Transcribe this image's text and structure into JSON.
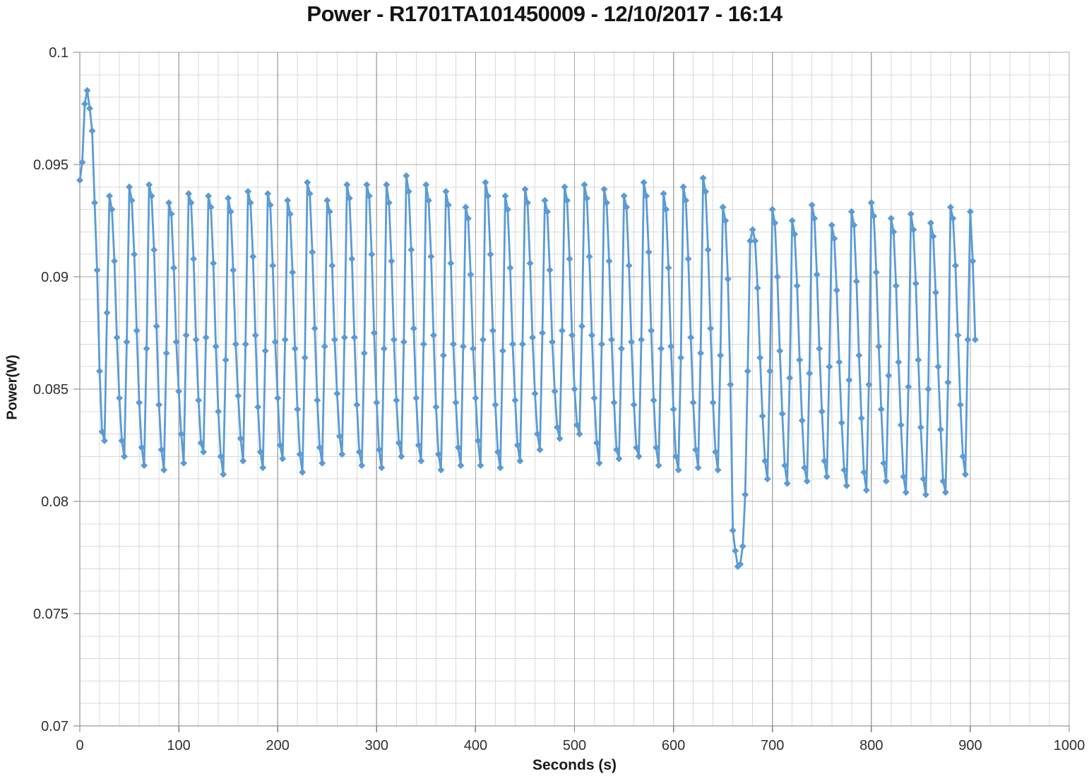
{
  "chart_data": {
    "type": "line",
    "title": "Power - R1701TA101450009 - 12/10/2017 - 16:14",
    "xlabel": "Seconds (s)",
    "ylabel": "Power(W)",
    "xlim": [
      0,
      1000
    ],
    "ylim": [
      0.07,
      0.1
    ],
    "grid": {
      "x_minor_step": 20,
      "x_major_step": 100,
      "y_minor_step": 0.001,
      "y_major_step": 0.005,
      "minor_color": "#D9D9D9",
      "major_color": "#A8A8A8",
      "axis_color": "#7F7F7F"
    },
    "legend_position": "none",
    "x_ticks": [
      {
        "value": 0,
        "label": "0"
      },
      {
        "value": 100,
        "label": "100"
      },
      {
        "value": 200,
        "label": "200"
      },
      {
        "value": 300,
        "label": "300"
      },
      {
        "value": 400,
        "label": "400"
      },
      {
        "value": 500,
        "label": "500"
      },
      {
        "value": 600,
        "label": "600"
      },
      {
        "value": 700,
        "label": "700"
      },
      {
        "value": 800,
        "label": "800"
      },
      {
        "value": 900,
        "label": "900"
      },
      {
        "value": 1000,
        "label": "1000"
      }
    ],
    "y_ticks": [
      {
        "value": 0.07,
        "label": "0.07"
      },
      {
        "value": 0.075,
        "label": "0.075"
      },
      {
        "value": 0.08,
        "label": "0.08"
      },
      {
        "value": 0.085,
        "label": "0.085"
      },
      {
        "value": 0.09,
        "label": "0.09"
      },
      {
        "value": 0.095,
        "label": "0.095"
      },
      {
        "value": 0.1,
        "label": "0.1"
      }
    ],
    "series": [
      {
        "name": "Power",
        "color": "#5B9BD5",
        "marker": "diamond",
        "marker_size": 10,
        "line_width": 2.8,
        "x_start": 0,
        "x_step": 2.5,
        "values": [
          0.0943,
          0.0951,
          0.0977,
          0.0983,
          0.0975,
          0.0965,
          0.0933,
          0.0903,
          0.0858,
          0.0831,
          0.0827,
          0.0884,
          0.0936,
          0.093,
          0.0907,
          0.0873,
          0.0846,
          0.0827,
          0.082,
          0.0871,
          0.094,
          0.0934,
          0.091,
          0.0876,
          0.0844,
          0.0824,
          0.0816,
          0.0868,
          0.0941,
          0.0936,
          0.0912,
          0.0878,
          0.0843,
          0.0823,
          0.0814,
          0.0866,
          0.0933,
          0.0928,
          0.0904,
          0.0871,
          0.0849,
          0.083,
          0.0817,
          0.0874,
          0.0937,
          0.0933,
          0.0908,
          0.0872,
          0.0845,
          0.0826,
          0.0822,
          0.0873,
          0.0936,
          0.0931,
          0.0906,
          0.0869,
          0.084,
          0.082,
          0.0812,
          0.0863,
          0.0935,
          0.0929,
          0.0903,
          0.087,
          0.0847,
          0.0828,
          0.0818,
          0.087,
          0.0938,
          0.0933,
          0.0909,
          0.0874,
          0.0842,
          0.0822,
          0.0815,
          0.0867,
          0.0937,
          0.0932,
          0.0905,
          0.0871,
          0.0846,
          0.0825,
          0.0819,
          0.0872,
          0.0934,
          0.0928,
          0.0902,
          0.0868,
          0.0841,
          0.0821,
          0.0813,
          0.0864,
          0.0942,
          0.0937,
          0.0911,
          0.0877,
          0.0845,
          0.0824,
          0.0817,
          0.0869,
          0.0934,
          0.0929,
          0.0905,
          0.0872,
          0.0848,
          0.0829,
          0.0821,
          0.0873,
          0.0941,
          0.0935,
          0.0908,
          0.0873,
          0.0843,
          0.0822,
          0.0816,
          0.0866,
          0.0941,
          0.0936,
          0.091,
          0.0875,
          0.0844,
          0.0823,
          0.0815,
          0.0868,
          0.0941,
          0.0933,
          0.0907,
          0.0872,
          0.0845,
          0.0826,
          0.082,
          0.0871,
          0.0945,
          0.0938,
          0.0912,
          0.0877,
          0.0846,
          0.0825,
          0.0818,
          0.087,
          0.0941,
          0.0934,
          0.0909,
          0.0874,
          0.0842,
          0.0821,
          0.0814,
          0.0865,
          0.0938,
          0.0932,
          0.0906,
          0.087,
          0.0844,
          0.0824,
          0.0816,
          0.0869,
          0.0931,
          0.0926,
          0.0901,
          0.0868,
          0.0846,
          0.0827,
          0.0816,
          0.0872,
          0.0942,
          0.0936,
          0.091,
          0.0876,
          0.0843,
          0.0822,
          0.0815,
          0.0867,
          0.0936,
          0.093,
          0.0904,
          0.087,
          0.0845,
          0.0825,
          0.0818,
          0.087,
          0.0939,
          0.0933,
          0.0906,
          0.0873,
          0.0848,
          0.083,
          0.0823,
          0.0875,
          0.0934,
          0.0929,
          0.0903,
          0.0871,
          0.0849,
          0.0833,
          0.0828,
          0.0876,
          0.094,
          0.0934,
          0.0908,
          0.0874,
          0.085,
          0.0834,
          0.083,
          0.0878,
          0.0941,
          0.0935,
          0.0909,
          0.0874,
          0.0846,
          0.0826,
          0.0817,
          0.087,
          0.0939,
          0.0933,
          0.0907,
          0.0872,
          0.0844,
          0.0823,
          0.0819,
          0.0868,
          0.0936,
          0.0931,
          0.0905,
          0.0871,
          0.0843,
          0.0824,
          0.082,
          0.0872,
          0.0942,
          0.0936,
          0.0911,
          0.0876,
          0.0845,
          0.0824,
          0.0816,
          0.0868,
          0.0937,
          0.093,
          0.0904,
          0.0869,
          0.0841,
          0.082,
          0.0814,
          0.0864,
          0.094,
          0.0934,
          0.0908,
          0.0873,
          0.0844,
          0.0823,
          0.0815,
          0.0866,
          0.0944,
          0.0938,
          0.0912,
          0.0877,
          0.0844,
          0.0822,
          0.0814,
          0.0865,
          0.0931,
          0.0925,
          0.0899,
          0.0852,
          0.0787,
          0.0778,
          0.0771,
          0.0772,
          0.078,
          0.0803,
          0.0858,
          0.0916,
          0.0921,
          0.0916,
          0.0895,
          0.0864,
          0.0838,
          0.0818,
          0.081,
          0.0858,
          0.093,
          0.0924,
          0.09,
          0.0867,
          0.0839,
          0.0816,
          0.0808,
          0.0855,
          0.0925,
          0.0919,
          0.0896,
          0.0863,
          0.0836,
          0.0815,
          0.0809,
          0.0857,
          0.0932,
          0.0926,
          0.0901,
          0.0868,
          0.084,
          0.0818,
          0.0811,
          0.086,
          0.0923,
          0.0917,
          0.0894,
          0.0862,
          0.0835,
          0.0814,
          0.0807,
          0.0854,
          0.0929,
          0.0923,
          0.0898,
          0.0865,
          0.0837,
          0.0813,
          0.0805,
          0.0852,
          0.0933,
          0.0927,
          0.0902,
          0.0869,
          0.0841,
          0.0817,
          0.0809,
          0.0856,
          0.0926,
          0.092,
          0.0896,
          0.0862,
          0.0834,
          0.0811,
          0.0804,
          0.0851,
          0.0928,
          0.0921,
          0.0897,
          0.0863,
          0.0833,
          0.081,
          0.0803,
          0.085,
          0.0924,
          0.0918,
          0.0893,
          0.086,
          0.0832,
          0.0809,
          0.0804,
          0.0853,
          0.0931,
          0.0926,
          0.0905,
          0.0874,
          0.0843,
          0.082,
          0.0812,
          0.0872,
          0.0929,
          0.0907,
          0.0872
        ]
      }
    ]
  }
}
